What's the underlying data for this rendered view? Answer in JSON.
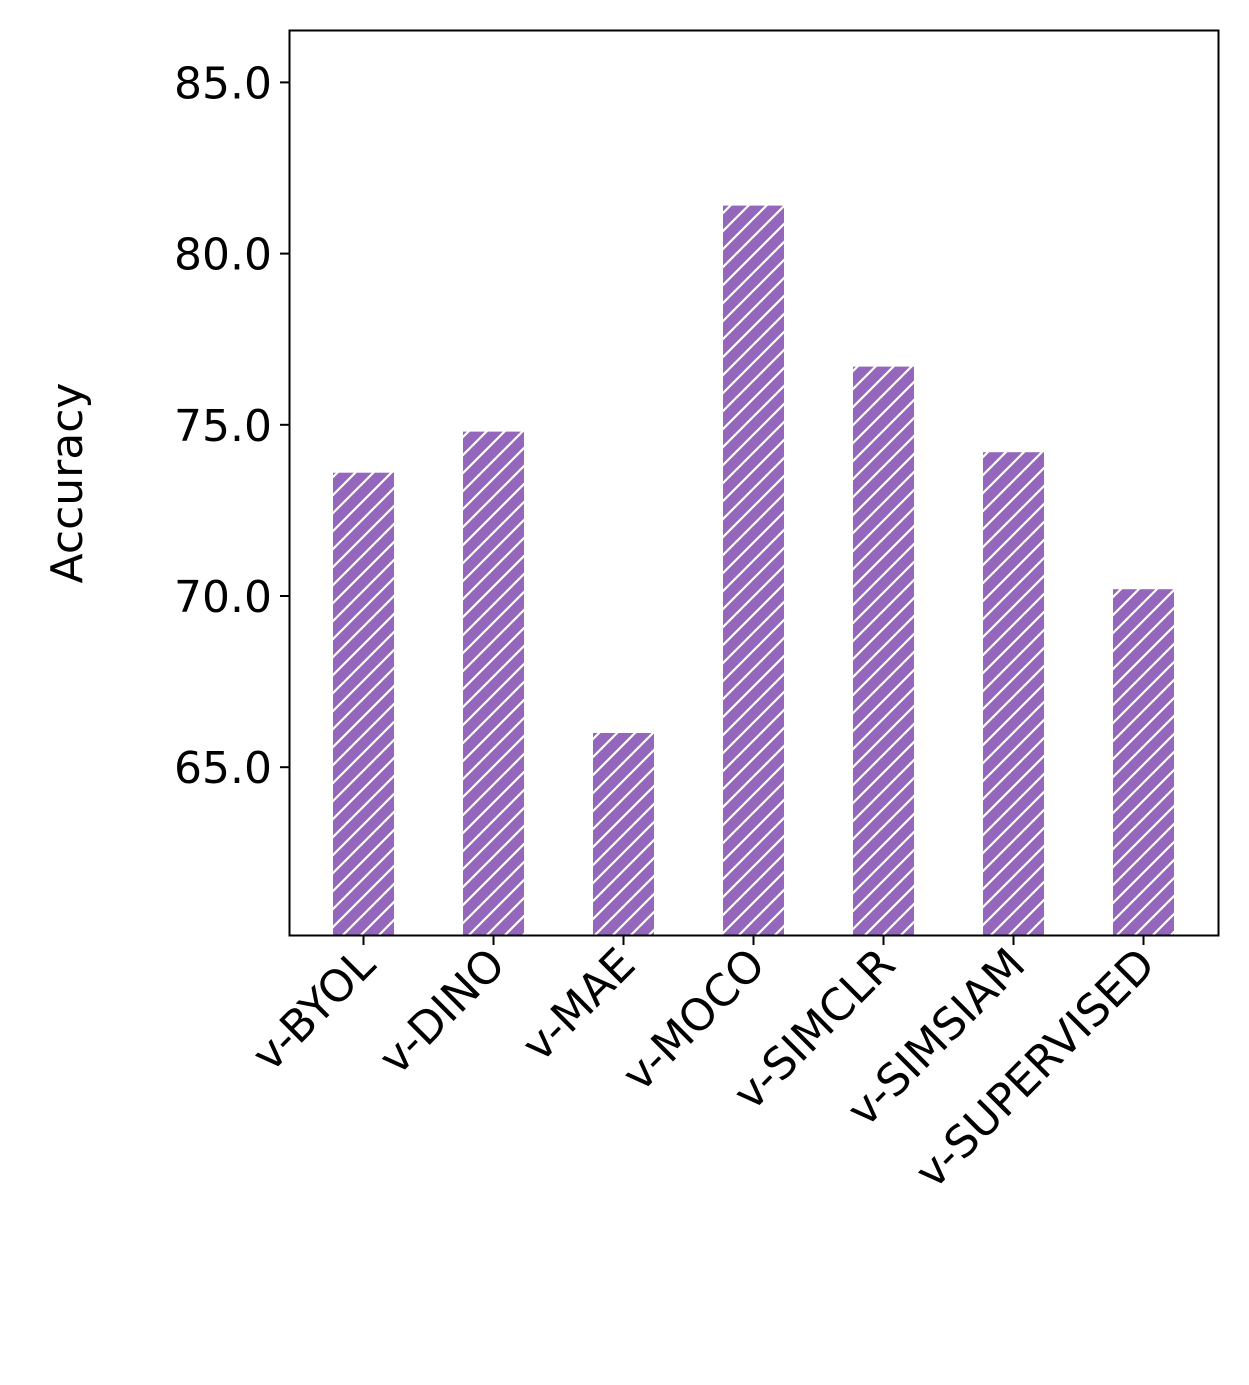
{
  "chart_data": {
    "type": "bar",
    "categories": [
      "v-BYOL",
      "v-DINO",
      "v-MAE",
      "v-MOCO",
      "v-SIMCLR",
      "v-SIMSIAM",
      "v-SUPERVISED"
    ],
    "values": [
      73.6,
      74.8,
      66.0,
      81.4,
      76.7,
      74.2,
      70.2
    ],
    "ylabel": "Accuracy",
    "xlabel": "",
    "title": "",
    "ylim": [
      60.1,
      86.5
    ],
    "yticks": [
      65.0,
      70.0,
      75.0,
      80.0,
      85.0
    ],
    "ytick_labels": [
      "65.0",
      "70.0",
      "75.0",
      "80.0",
      "85.0"
    ],
    "bar_color": "#9467bd",
    "hatch": "diagonal",
    "grid": false,
    "legend": "none"
  }
}
